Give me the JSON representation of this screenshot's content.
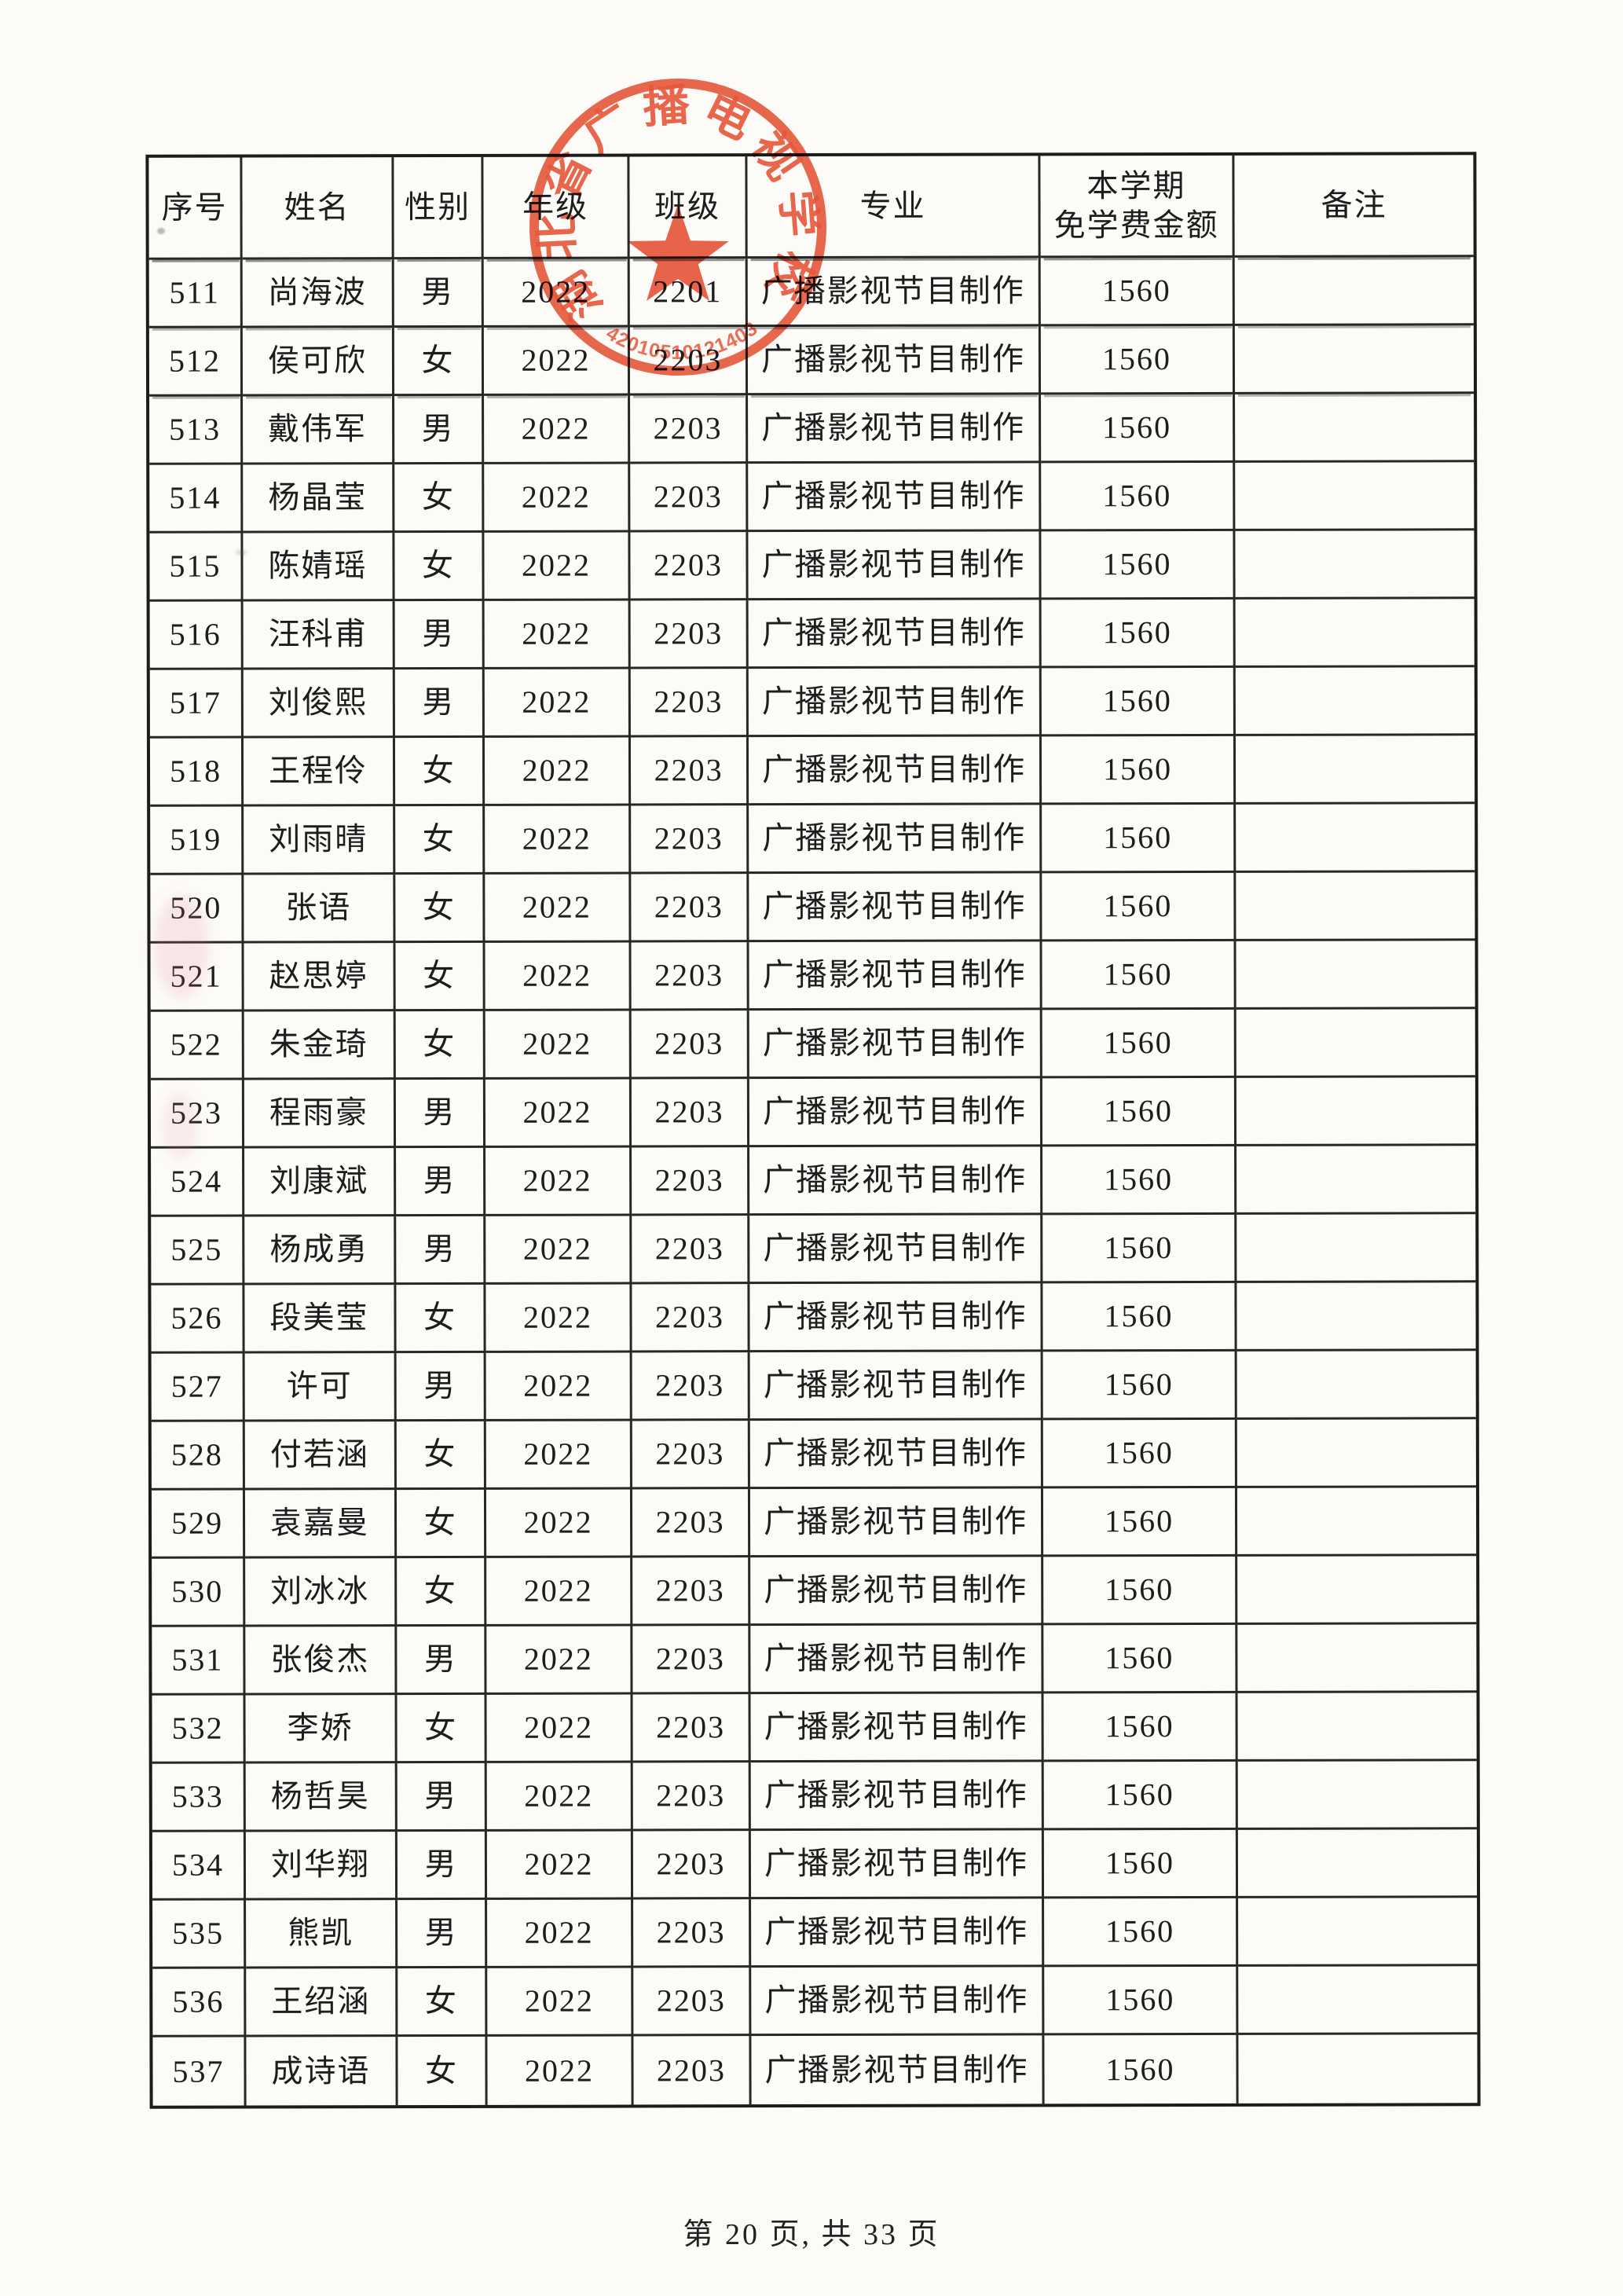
{
  "page": {
    "footer": "第 20 页, 共 33 页",
    "paper_color": "#fcfbf8",
    "ink_color": "#1d1d1d"
  },
  "stamp": {
    "ring_text": "湖北省广播电视学校",
    "serial": "42010510121403",
    "color": "#e64a2b",
    "star_icon": "red-star-icon"
  },
  "table": {
    "headers": [
      "序号",
      "姓名",
      "性别",
      "年级",
      "班级",
      "专业",
      "本学期\n免学费金额",
      "备注"
    ],
    "rows": [
      [
        "511",
        "尚海波",
        "男",
        "2022",
        "2201",
        "广播影视节目制作",
        "1560",
        ""
      ],
      [
        "512",
        "侯可欣",
        "女",
        "2022",
        "2203",
        "广播影视节目制作",
        "1560",
        ""
      ],
      [
        "513",
        "戴伟军",
        "男",
        "2022",
        "2203",
        "广播影视节目制作",
        "1560",
        ""
      ],
      [
        "514",
        "杨晶莹",
        "女",
        "2022",
        "2203",
        "广播影视节目制作",
        "1560",
        ""
      ],
      [
        "515",
        "陈婧瑶",
        "女",
        "2022",
        "2203",
        "广播影视节目制作",
        "1560",
        ""
      ],
      [
        "516",
        "汪科甫",
        "男",
        "2022",
        "2203",
        "广播影视节目制作",
        "1560",
        ""
      ],
      [
        "517",
        "刘俊熙",
        "男",
        "2022",
        "2203",
        "广播影视节目制作",
        "1560",
        ""
      ],
      [
        "518",
        "王程伶",
        "女",
        "2022",
        "2203",
        "广播影视节目制作",
        "1560",
        ""
      ],
      [
        "519",
        "刘雨晴",
        "女",
        "2022",
        "2203",
        "广播影视节目制作",
        "1560",
        ""
      ],
      [
        "520",
        "张语",
        "女",
        "2022",
        "2203",
        "广播影视节目制作",
        "1560",
        ""
      ],
      [
        "521",
        "赵思婷",
        "女",
        "2022",
        "2203",
        "广播影视节目制作",
        "1560",
        ""
      ],
      [
        "522",
        "朱金琦",
        "女",
        "2022",
        "2203",
        "广播影视节目制作",
        "1560",
        ""
      ],
      [
        "523",
        "程雨豪",
        "男",
        "2022",
        "2203",
        "广播影视节目制作",
        "1560",
        ""
      ],
      [
        "524",
        "刘康斌",
        "男",
        "2022",
        "2203",
        "广播影视节目制作",
        "1560",
        ""
      ],
      [
        "525",
        "杨成勇",
        "男",
        "2022",
        "2203",
        "广播影视节目制作",
        "1560",
        ""
      ],
      [
        "526",
        "段美莹",
        "女",
        "2022",
        "2203",
        "广播影视节目制作",
        "1560",
        ""
      ],
      [
        "527",
        "许可",
        "男",
        "2022",
        "2203",
        "广播影视节目制作",
        "1560",
        ""
      ],
      [
        "528",
        "付若涵",
        "女",
        "2022",
        "2203",
        "广播影视节目制作",
        "1560",
        ""
      ],
      [
        "529",
        "袁嘉曼",
        "女",
        "2022",
        "2203",
        "广播影视节目制作",
        "1560",
        ""
      ],
      [
        "530",
        "刘冰冰",
        "女",
        "2022",
        "2203",
        "广播影视节目制作",
        "1560",
        ""
      ],
      [
        "531",
        "张俊杰",
        "男",
        "2022",
        "2203",
        "广播影视节目制作",
        "1560",
        ""
      ],
      [
        "532",
        "李娇",
        "女",
        "2022",
        "2203",
        "广播影视节目制作",
        "1560",
        ""
      ],
      [
        "533",
        "杨哲昊",
        "男",
        "2022",
        "2203",
        "广播影视节目制作",
        "1560",
        ""
      ],
      [
        "534",
        "刘华翔",
        "男",
        "2022",
        "2203",
        "广播影视节目制作",
        "1560",
        ""
      ],
      [
        "535",
        "熊凯",
        "男",
        "2022",
        "2203",
        "广播影视节目制作",
        "1560",
        ""
      ],
      [
        "536",
        "王绍涵",
        "女",
        "2022",
        "2203",
        "广播影视节目制作",
        "1560",
        ""
      ],
      [
        "537",
        "成诗语",
        "女",
        "2022",
        "2203",
        "广播影视节目制作",
        "1560",
        ""
      ]
    ]
  }
}
